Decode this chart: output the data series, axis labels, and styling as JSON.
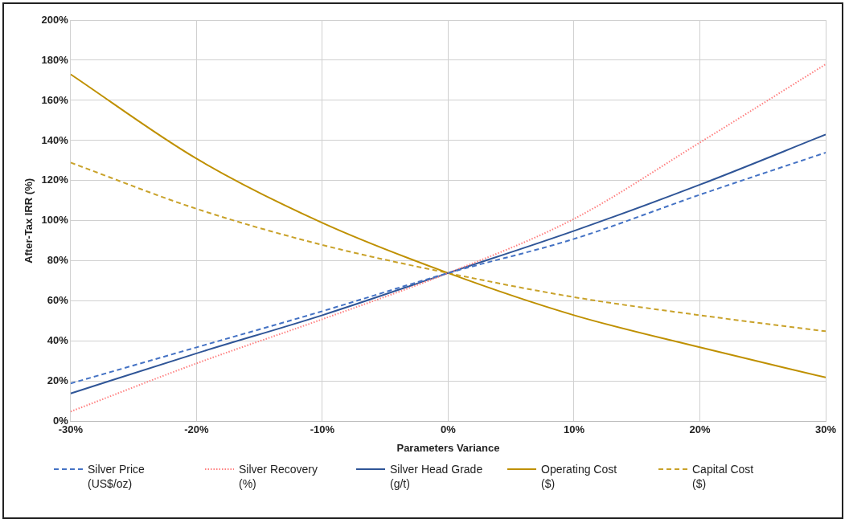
{
  "chart_data": {
    "type": "line",
    "xlabel": "Parameters Variance",
    "ylabel": "After-Tax IRR (%)",
    "x": [
      -30,
      -20,
      -10,
      0,
      10,
      20,
      30
    ],
    "xlim": [
      -30,
      30
    ],
    "xticks": [
      {
        "value": -30,
        "label": "-30%"
      },
      {
        "value": -20,
        "label": "-20%"
      },
      {
        "value": -10,
        "label": "-10%"
      },
      {
        "value": 0,
        "label": "0%"
      },
      {
        "value": 10,
        "label": "10%"
      },
      {
        "value": 20,
        "label": "20%"
      },
      {
        "value": 30,
        "label": "30%"
      }
    ],
    "ylim": [
      0,
      200
    ],
    "yticks": [
      {
        "value": 0,
        "label": "0%"
      },
      {
        "value": 20,
        "label": "20%"
      },
      {
        "value": 40,
        "label": "40%"
      },
      {
        "value": 60,
        "label": "60%"
      },
      {
        "value": 80,
        "label": "80%"
      },
      {
        "value": 100,
        "label": "100%"
      },
      {
        "value": 120,
        "label": "120%"
      },
      {
        "value": 140,
        "label": "140%"
      },
      {
        "value": 160,
        "label": "160%"
      },
      {
        "value": 180,
        "label": "180%"
      },
      {
        "value": 200,
        "label": "200%"
      }
    ],
    "grid": true,
    "legend": "bottom",
    "marker": "none",
    "series": [
      {
        "name": "Silver Price (US$/oz)",
        "color": "#4472c4",
        "line_style": "dashed",
        "values": [
          19,
          37,
          55,
          74,
          91,
          113,
          134
        ]
      },
      {
        "name": "Silver Recovery (%)",
        "color": "#ff8080",
        "line_style": "dotted",
        "values": [
          5,
          29,
          51,
          74,
          101,
          139,
          178
        ]
      },
      {
        "name": "Silver Head Grade (g/t)",
        "color": "#2f5597",
        "line_style": "solid",
        "values": [
          14,
          34,
          53,
          74,
          95,
          118,
          143
        ]
      },
      {
        "name": "Operating Cost ($)",
        "color": "#bf9000",
        "line_style": "solid",
        "values": [
          173,
          131,
          99,
          74,
          53,
          37,
          22
        ]
      },
      {
        "name": "Capital Cost ($)",
        "color": "#c9a22a",
        "line_style": "dashed",
        "values": [
          129,
          106,
          88,
          74,
          62,
          53,
          45
        ]
      }
    ]
  }
}
